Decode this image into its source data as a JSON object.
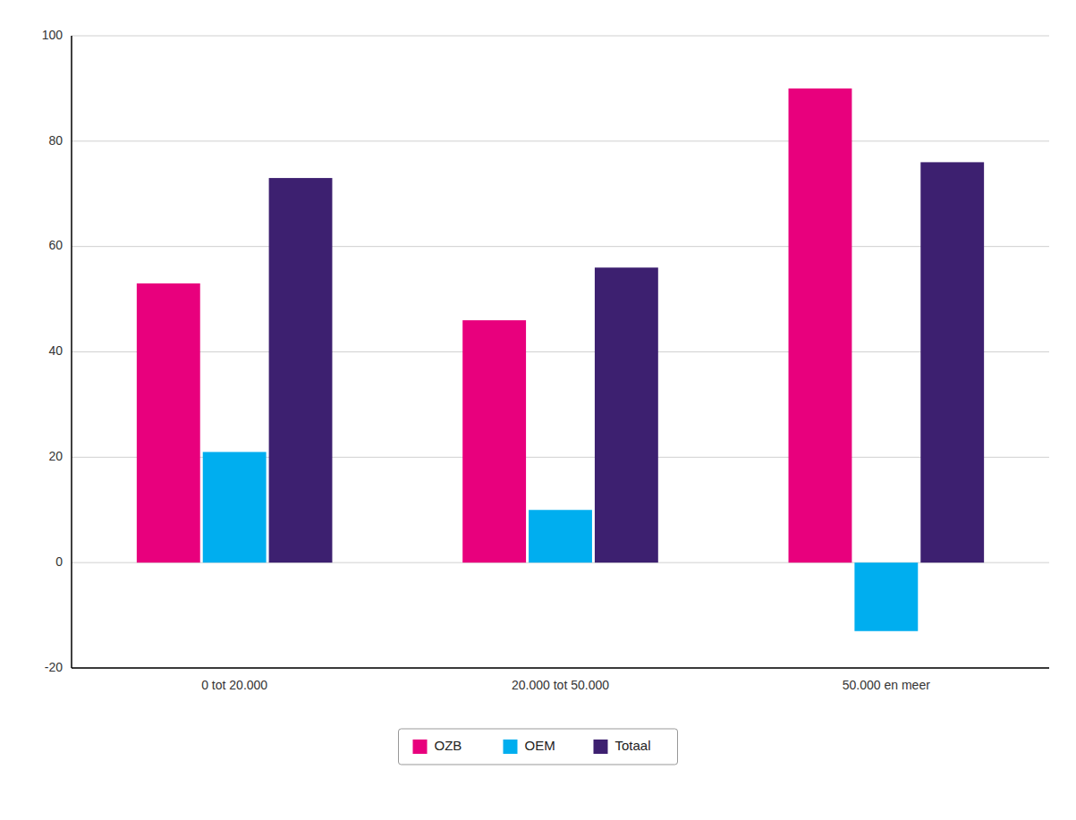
{
  "chart_data": {
    "type": "bar",
    "categories": [
      "0 tot 20.000",
      "20.000 tot 50.000",
      "50.000 en meer"
    ],
    "series": [
      {
        "name": "OZB",
        "color": "#E8007D",
        "values": [
          53,
          46,
          90
        ]
      },
      {
        "name": "OEM",
        "color": "#00AEEF",
        "values": [
          21,
          10,
          -13
        ]
      },
      {
        "name": "Totaal",
        "color": "#3D2070",
        "values": [
          73,
          56,
          76
        ]
      }
    ],
    "ylim": [
      -20,
      100
    ],
    "yticks": [
      -20,
      0,
      20,
      40,
      60,
      80,
      100
    ],
    "grid": true,
    "legend": "bottom"
  }
}
